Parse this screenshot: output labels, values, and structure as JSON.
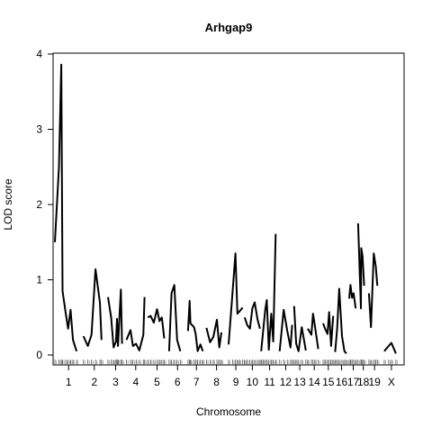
{
  "chart_data": {
    "type": "line",
    "title": "Arhgap9",
    "xlabel": "Chromosome",
    "ylabel": "LOD score",
    "ylim": [
      0,
      4
    ],
    "yticks": [
      0,
      1,
      2,
      3,
      4
    ],
    "grid": false,
    "legend": "none",
    "chromosomes": [
      {
        "label": "1",
        "start": 0,
        "end": 3.4,
        "points": [
          [
            0.0,
            1.5
          ],
          [
            0.5,
            2.5
          ],
          [
            0.8,
            3.86
          ],
          [
            0.95,
            0.85
          ],
          [
            1.35,
            0.55
          ],
          [
            1.65,
            0.35
          ],
          [
            1.95,
            0.6
          ],
          [
            2.25,
            0.2
          ],
          [
            2.7,
            0.05
          ]
        ]
      },
      {
        "label": "2",
        "start": 3.4,
        "end": 6.4,
        "points": [
          [
            3.55,
            0.25
          ],
          [
            4.1,
            0.12
          ],
          [
            4.55,
            0.27
          ],
          [
            5.05,
            1.14
          ],
          [
            5.6,
            0.7
          ],
          [
            5.8,
            0.2
          ]
        ]
      },
      {
        "label": "3",
        "start": 6.4,
        "end": 8.7,
        "points": [
          [
            6.6,
            0.77
          ],
          [
            7.0,
            0.5
          ],
          [
            7.3,
            0.1
          ],
          [
            7.6,
            0.18
          ],
          [
            7.72,
            0.48
          ],
          [
            7.85,
            0.12
          ],
          [
            8.2,
            0.87
          ],
          [
            8.35,
            0.15
          ]
        ]
      },
      {
        "label": "4",
        "start": 8.7,
        "end": 11.4,
        "points": [
          [
            8.9,
            0.2
          ],
          [
            9.4,
            0.33
          ],
          [
            9.7,
            0.12
          ],
          [
            10.1,
            0.15
          ],
          [
            10.5,
            0.06
          ],
          [
            11.0,
            0.27
          ],
          [
            11.15,
            0.77
          ]
        ]
      },
      {
        "label": "5",
        "start": 11.4,
        "end": 14.0,
        "points": [
          [
            11.55,
            0.5
          ],
          [
            11.9,
            0.52
          ],
          [
            12.3,
            0.43
          ],
          [
            12.7,
            0.61
          ],
          [
            13.0,
            0.45
          ],
          [
            13.3,
            0.5
          ],
          [
            13.6,
            0.22
          ]
        ]
      },
      {
        "label": "6",
        "start": 14.0,
        "end": 16.5,
        "points": [
          [
            14.2,
            0.05
          ],
          [
            14.5,
            0.82
          ],
          [
            14.85,
            0.93
          ],
          [
            15.2,
            0.2
          ],
          [
            15.6,
            0.05
          ]
        ]
      },
      {
        "label": "7",
        "start": 16.5,
        "end": 18.7,
        "points": [
          [
            16.55,
            0.32
          ],
          [
            16.75,
            0.72
          ],
          [
            16.85,
            0.42
          ],
          [
            17.3,
            0.37
          ],
          [
            17.5,
            0.28
          ],
          [
            17.75,
            0.05
          ],
          [
            18.1,
            0.14
          ],
          [
            18.4,
            0.05
          ]
        ]
      },
      {
        "label": "8",
        "start": 18.7,
        "end": 21.5,
        "points": [
          [
            18.85,
            0.36
          ],
          [
            19.3,
            0.17
          ],
          [
            19.7,
            0.24
          ],
          [
            20.15,
            0.47
          ],
          [
            20.45,
            0.1
          ],
          [
            20.7,
            0.3
          ]
        ]
      },
      {
        "label": "9",
        "start": 21.5,
        "end": 23.5,
        "points": [
          [
            21.6,
            0.14
          ],
          [
            22.1,
            0.85
          ],
          [
            22.45,
            1.35
          ],
          [
            22.7,
            0.55
          ],
          [
            22.95,
            0.58
          ],
          [
            23.35,
            0.63
          ]
        ]
      },
      {
        "label": "10",
        "start": 23.5,
        "end": 25.6,
        "points": [
          [
            23.6,
            0.5
          ],
          [
            23.9,
            0.4
          ],
          [
            24.25,
            0.35
          ],
          [
            24.55,
            0.62
          ],
          [
            24.85,
            0.7
          ],
          [
            25.2,
            0.47
          ],
          [
            25.5,
            0.35
          ]
        ]
      },
      {
        "label": "11",
        "start": 25.6,
        "end": 27.8,
        "points": [
          [
            25.65,
            0.05
          ],
          [
            25.9,
            0.32
          ],
          [
            26.15,
            0.6
          ],
          [
            26.35,
            0.73
          ],
          [
            26.6,
            0.07
          ],
          [
            26.9,
            0.55
          ],
          [
            27.15,
            0.18
          ],
          [
            27.45,
            1.61
          ]
        ]
      },
      {
        "label": "12",
        "start": 27.8,
        "end": 29.6,
        "points": [
          [
            27.95,
            0.05
          ],
          [
            28.45,
            0.6
          ],
          [
            28.9,
            0.32
          ],
          [
            29.3,
            0.1
          ],
          [
            29.5,
            0.4
          ]
        ]
      },
      {
        "label": "13",
        "start": 29.6,
        "end": 31.3,
        "points": [
          [
            29.75,
            0.65
          ],
          [
            30.0,
            0.15
          ],
          [
            30.3,
            0.05
          ],
          [
            30.7,
            0.37
          ],
          [
            31.2,
            0.06
          ]
        ]
      },
      {
        "label": "14",
        "start": 31.3,
        "end": 33.2,
        "points": [
          [
            31.45,
            0.35
          ],
          [
            31.9,
            0.27
          ],
          [
            32.1,
            0.55
          ],
          [
            32.35,
            0.37
          ],
          [
            32.75,
            0.08
          ]
        ]
      },
      {
        "label": "15",
        "start": 33.2,
        "end": 34.8,
        "points": [
          [
            33.35,
            0.42
          ],
          [
            33.6,
            0.35
          ],
          [
            33.9,
            0.28
          ],
          [
            34.1,
            0.57
          ],
          [
            34.35,
            0.12
          ],
          [
            34.6,
            0.52
          ]
        ]
      },
      {
        "label": "16",
        "start": 34.8,
        "end": 36.5,
        "points": [
          [
            34.85,
            0.04
          ],
          [
            35.1,
            0.35
          ],
          [
            35.35,
            0.88
          ],
          [
            35.7,
            0.25
          ],
          [
            36.0,
            0.05
          ],
          [
            36.25,
            0.02
          ]
        ]
      },
      {
        "label": "17",
        "start": 36.5,
        "end": 37.7,
        "points": [
          [
            36.6,
            0.75
          ],
          [
            36.75,
            0.93
          ],
          [
            36.95,
            0.76
          ],
          [
            37.15,
            0.82
          ],
          [
            37.4,
            0.62
          ]
        ]
      },
      {
        "label": "18",
        "start": 37.7,
        "end": 39.0,
        "points": [
          [
            37.7,
            1.75
          ],
          [
            38.05,
            0.62
          ],
          [
            38.1,
            1.42
          ],
          [
            38.25,
            1.32
          ],
          [
            38.45,
            0.92
          ]
        ]
      },
      {
        "label": "19",
        "start": 39.0,
        "end": 40.5,
        "points": [
          [
            39.05,
            0.82
          ],
          [
            39.3,
            0.37
          ],
          [
            39.65,
            1.35
          ],
          [
            39.9,
            1.18
          ],
          [
            40.1,
            0.92
          ]
        ]
      },
      {
        "label": "X",
        "start": 40.5,
        "end": 43.2,
        "points": [
          [
            40.95,
            0.05
          ],
          [
            41.5,
            0.12
          ],
          [
            41.85,
            0.16
          ],
          [
            42.4,
            0.02
          ]
        ]
      }
    ],
    "xlim": [
      0,
      43.2
    ]
  }
}
